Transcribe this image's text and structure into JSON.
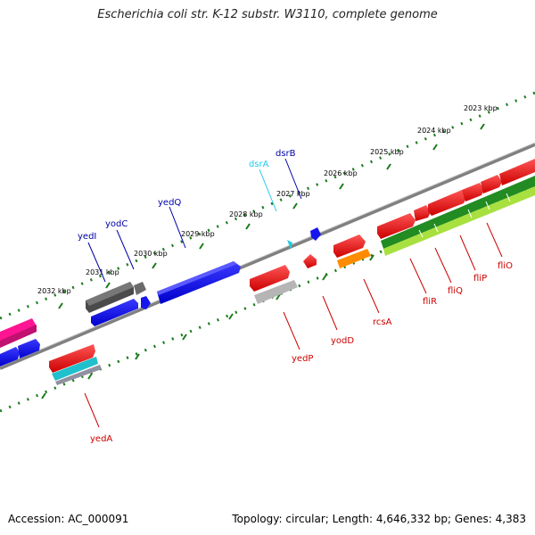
{
  "title": "Escherichia coli str. K-12 substr. W3110, complete genome",
  "footer": {
    "accession": "Accession: AC_000091",
    "topology": "Topology: circular; Length: 4,646,332 bp; Genes: 4,383"
  },
  "colors": {
    "forward_gene": "#1010ee",
    "reverse_gene": "#ee1111",
    "dark_gray": "#505050",
    "light_gray": "#b0b0b0",
    "cyan": "#22ccdd",
    "pink": "#ff1493",
    "orange": "#ff8c00",
    "green": "#228b22",
    "lime": "#9acd32",
    "tick": "#1a7a1a",
    "forward_label": "#0000aa",
    "reverse_label": "#cc0000"
  },
  "ruler": {
    "unit": "kbp",
    "ticks": [
      {
        "kbp": 2032,
        "label": "2032 kbp"
      },
      {
        "kbp": 2031,
        "label": "2031 kbp"
      },
      {
        "kbp": 2030,
        "label": "2030 kbp"
      },
      {
        "kbp": 2029,
        "label": "2029 kbp"
      },
      {
        "kbp": 2028,
        "label": "2028 kbp"
      },
      {
        "kbp": 2027,
        "label": "2027 kbp"
      },
      {
        "kbp": 2026,
        "label": "2026 kbp"
      },
      {
        "kbp": 2025,
        "label": "2025 kbp"
      },
      {
        "kbp": 2024,
        "label": "2024 kbp"
      },
      {
        "kbp": 2023,
        "label": "2023 kbp"
      }
    ]
  },
  "gene_labels": [
    {
      "name": "yedI",
      "strand": "forward"
    },
    {
      "name": "yodC",
      "strand": "forward"
    },
    {
      "name": "yedQ",
      "strand": "forward"
    },
    {
      "name": "dsrA",
      "strand": "forward"
    },
    {
      "name": "dsrB",
      "strand": "forward"
    },
    {
      "name": "yedA",
      "strand": "reverse"
    },
    {
      "name": "yedP",
      "strand": "reverse"
    },
    {
      "name": "yodD",
      "strand": "reverse"
    },
    {
      "name": "rcsA",
      "strand": "reverse"
    },
    {
      "name": "fliR",
      "strand": "reverse"
    },
    {
      "name": "fliQ",
      "strand": "reverse"
    },
    {
      "name": "fliP",
      "strand": "reverse"
    },
    {
      "name": "fliO",
      "strand": "reverse"
    }
  ]
}
